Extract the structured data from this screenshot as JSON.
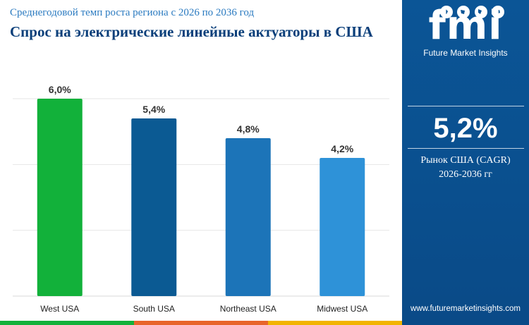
{
  "header": {
    "subtitle": "Среднегодовой темп роста региона с 2026 по 2036 год",
    "title": "Спрос на электрические линейные актуаторы в США"
  },
  "chart_data": {
    "type": "bar",
    "categories": [
      "West USA",
      "South USA",
      "Northeast USA",
      "Midwest USA"
    ],
    "values": [
      6.0,
      5.4,
      4.8,
      4.2
    ],
    "value_labels": [
      "6,0%",
      "5,4%",
      "4,8%",
      "4,2%"
    ],
    "colors": [
      "#12b13a",
      "#0b5a93",
      "#1c74b8",
      "#2e92d8"
    ],
    "ylim": [
      0,
      6
    ],
    "grid": true,
    "xlabel": "",
    "ylabel": ""
  },
  "sidebar": {
    "logo_text": "fmi",
    "brand": "Future Market Insights",
    "kpi_value": "5,2%",
    "kpi_label": "Рынок США (CAGR)",
    "kpi_period": "2026-2036 гг",
    "website": "www.futuremarketinsights.com",
    "bg_color": "#0b5596"
  },
  "bottom_strip_colors": [
    "#12b13a",
    "#e8652a",
    "#f2b400"
  ]
}
